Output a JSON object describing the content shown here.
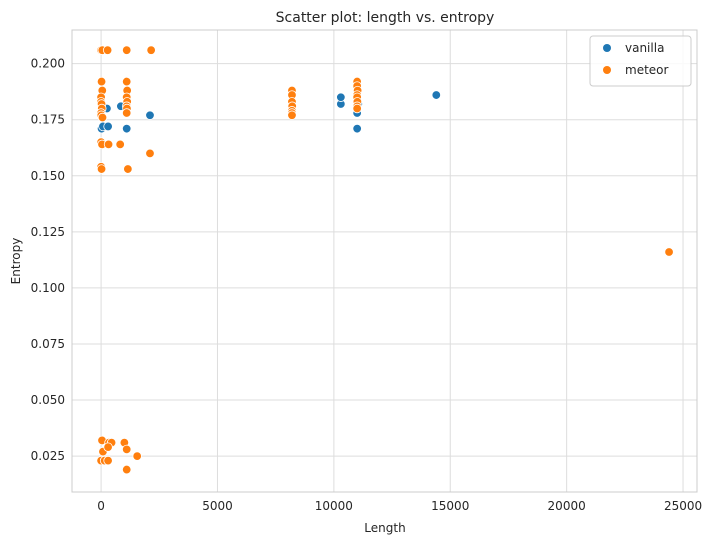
{
  "chart_data": {
    "type": "scatter",
    "title": "Scatter plot: length vs. entropy",
    "xlabel": "Length",
    "ylabel": "Entropy",
    "xlim": [
      -1250,
      25600
    ],
    "ylim": [
      0.009,
      0.215
    ],
    "x_ticks": [
      0,
      5000,
      10000,
      15000,
      20000,
      25000
    ],
    "y_ticks": [
      0.025,
      0.05,
      0.075,
      0.1,
      0.125,
      0.15,
      0.175,
      0.2
    ],
    "x_tick_labels": [
      "0",
      "5000",
      "10000",
      "15000",
      "20000",
      "25000"
    ],
    "y_tick_labels": [
      "0.025",
      "0.050",
      "0.075",
      "0.100",
      "0.125",
      "0.150",
      "0.175",
      "0.200"
    ],
    "grid": true,
    "legend_position": "top-right",
    "series": [
      {
        "name": "vanilla",
        "color": "#1f77b4",
        "points": [
          [
            20,
            0.171
          ],
          [
            80,
            0.172
          ],
          [
            150,
            0.18
          ],
          [
            250,
            0.18
          ],
          [
            300,
            0.172
          ],
          [
            850,
            0.181
          ],
          [
            1100,
            0.171
          ],
          [
            2100,
            0.177
          ],
          [
            10300,
            0.182
          ],
          [
            10300,
            0.185
          ],
          [
            11000,
            0.171
          ],
          [
            11000,
            0.178
          ],
          [
            11050,
            0.182
          ],
          [
            14400,
            0.186
          ]
        ]
      },
      {
        "name": "meteor",
        "color": "#ff7f0e",
        "points": [
          [
            0,
            0.206
          ],
          [
            50,
            0.206
          ],
          [
            280,
            0.206
          ],
          [
            1100,
            0.206
          ],
          [
            2150,
            0.206
          ],
          [
            20,
            0.192
          ],
          [
            50,
            0.188
          ],
          [
            0,
            0.185
          ],
          [
            0,
            0.183
          ],
          [
            20,
            0.182
          ],
          [
            30,
            0.18
          ],
          [
            0,
            0.178
          ],
          [
            10,
            0.177
          ],
          [
            60,
            0.176
          ],
          [
            0,
            0.165
          ],
          [
            40,
            0.164
          ],
          [
            320,
            0.164
          ],
          [
            0,
            0.154
          ],
          [
            20,
            0.153
          ],
          [
            1100,
            0.192
          ],
          [
            1120,
            0.188
          ],
          [
            1100,
            0.185
          ],
          [
            1120,
            0.183
          ],
          [
            1100,
            0.181
          ],
          [
            1110,
            0.18
          ],
          [
            1100,
            0.178
          ],
          [
            820,
            0.164
          ],
          [
            1150,
            0.153
          ],
          [
            2100,
            0.16
          ],
          [
            8200,
            0.188
          ],
          [
            8200,
            0.186
          ],
          [
            8200,
            0.183
          ],
          [
            8210,
            0.181
          ],
          [
            8200,
            0.179
          ],
          [
            8200,
            0.178
          ],
          [
            8200,
            0.177
          ],
          [
            11000,
            0.192
          ],
          [
            11000,
            0.19
          ],
          [
            11020,
            0.188
          ],
          [
            11000,
            0.186
          ],
          [
            11000,
            0.185
          ],
          [
            11010,
            0.183
          ],
          [
            11000,
            0.181
          ],
          [
            11000,
            0.18
          ],
          [
            24400,
            0.116
          ],
          [
            0,
            0.023
          ],
          [
            80,
            0.027
          ],
          [
            40,
            0.032
          ],
          [
            150,
            0.023
          ],
          [
            300,
            0.023
          ],
          [
            340,
            0.031
          ],
          [
            450,
            0.031
          ],
          [
            300,
            0.029
          ],
          [
            1000,
            0.031
          ],
          [
            1100,
            0.028
          ],
          [
            1100,
            0.019
          ],
          [
            1550,
            0.025
          ]
        ]
      }
    ]
  }
}
